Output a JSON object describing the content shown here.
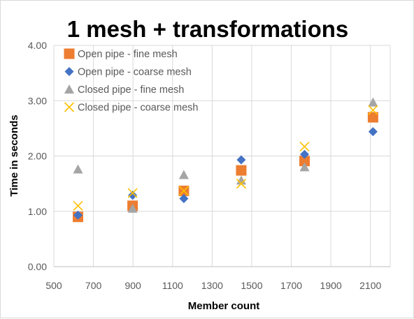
{
  "chart_data": {
    "type": "scatter",
    "title": "1 mesh + transformations",
    "xlabel": "Member count",
    "ylabel": "Time in seconds",
    "xlim": [
      500,
      2200
    ],
    "ylim": [
      0,
      4
    ],
    "xticks": [
      500,
      700,
      900,
      1100,
      1300,
      1500,
      1700,
      1900,
      2100
    ],
    "yticks": [
      0,
      1,
      2,
      3,
      4
    ],
    "xtick_labels": [
      "500",
      "700",
      "900",
      "1100",
      "1300",
      "1500",
      "1700",
      "1900",
      "2100"
    ],
    "ytick_labels": [
      "0.00",
      "1.00",
      "2.00",
      "3.00",
      "4.00"
    ],
    "grid": "vertical and horizontal major gridlines",
    "legend_position": "top-left",
    "series": [
      {
        "name": "Open pipe - fine mesh",
        "marker": "square",
        "color": "#ED7D31",
        "points": [
          [
            622,
            0.9
          ],
          [
            898,
            1.1
          ],
          [
            1157,
            1.37
          ],
          [
            1447,
            1.74
          ],
          [
            1767,
            1.91
          ],
          [
            2113,
            2.7
          ]
        ]
      },
      {
        "name": "Open pipe - coarse mesh",
        "marker": "diamond",
        "color": "#4472C4",
        "points": [
          [
            622,
            0.93
          ],
          [
            898,
            1.29
          ],
          [
            1157,
            1.23
          ],
          [
            1447,
            1.93
          ],
          [
            1767,
            2.03
          ],
          [
            2113,
            2.44
          ]
        ]
      },
      {
        "name": "Closed pipe - fine mesh",
        "marker": "triangle",
        "color": "#A5A5A5",
        "points": [
          [
            622,
            1.76
          ],
          [
            898,
            1.05
          ],
          [
            1157,
            1.66
          ],
          [
            1447,
            1.56
          ],
          [
            1767,
            1.8
          ],
          [
            2113,
            2.97
          ]
        ]
      },
      {
        "name": "Closed pipe - coarse mesh",
        "marker": "x",
        "color": "#FFC000",
        "points": [
          [
            622,
            1.1
          ],
          [
            898,
            1.33
          ],
          [
            1157,
            1.37
          ],
          [
            1447,
            1.5
          ],
          [
            1767,
            2.17
          ],
          [
            2113,
            2.83
          ]
        ]
      }
    ]
  }
}
